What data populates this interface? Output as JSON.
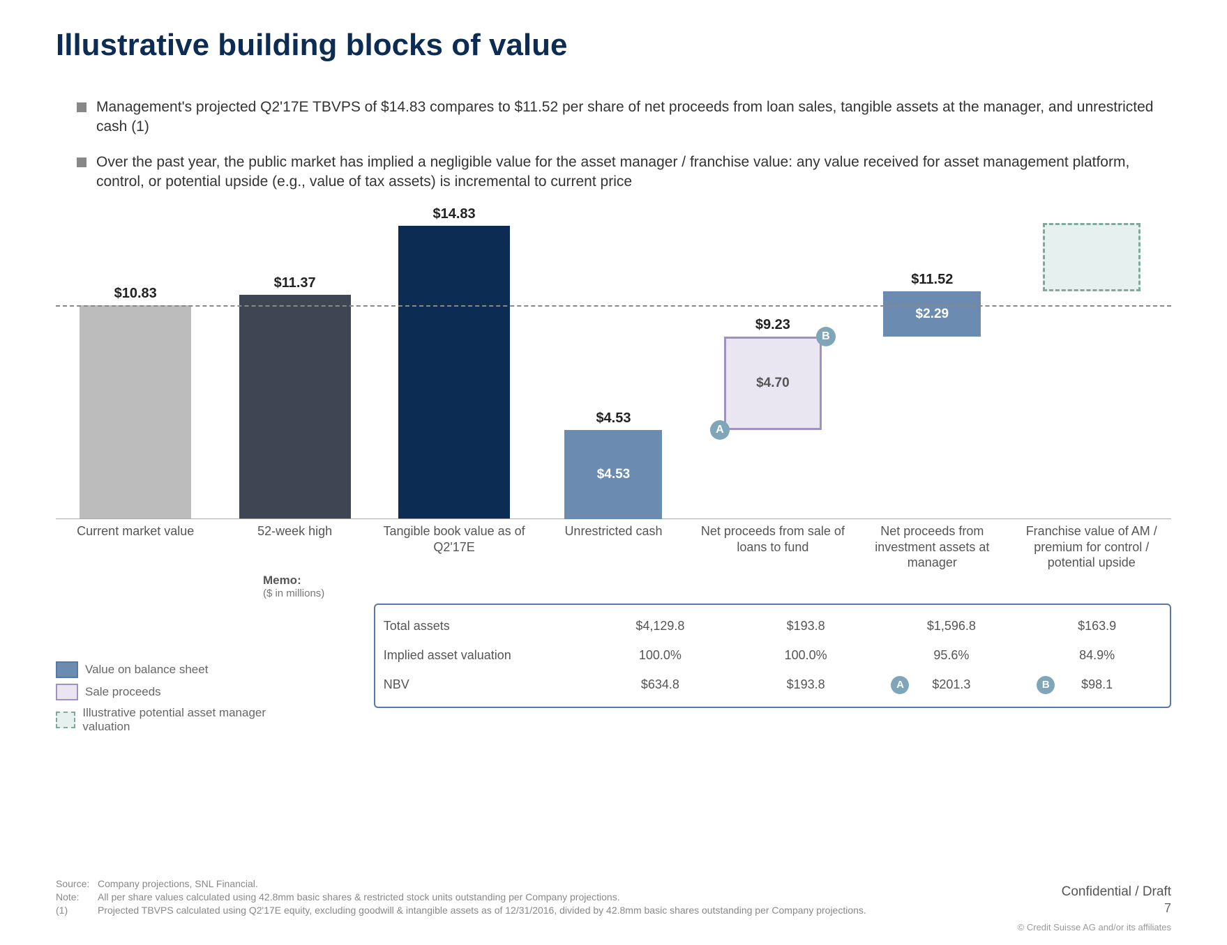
{
  "title": "Illustrative building blocks of value",
  "bullets": [
    "Management's projected Q2'17E TBVPS of $14.83 compares to $11.52 per share of net proceeds from loan sales, tangible assets at the manager, and unrestricted cash (1)",
    "Over the past year, the public market has implied a negligible value for the asset manager / franchise value: any value received for asset management platform, control, or  potential upside (e.g., value of tax assets) is incremental to current price"
  ],
  "chart": {
    "ymax": 15.5,
    "ymin": 0,
    "dashed_ref_value": 10.83,
    "grid_color": "#888888",
    "background_color": "#ffffff",
    "colors": {
      "grey_light": "#bcbcbc",
      "grey_dark": "#3f4552",
      "navy": "#0d2c54",
      "blue_mid": "#6c8bb0",
      "lavender_fill": "#e9e6f2",
      "lavender_border": "#9f92c0",
      "teal_fill": "#e6f0ee",
      "teal_border": "#7fa99a",
      "badge_a": "#7fa6b8",
      "badge_b": "#7fa6b8"
    },
    "series": [
      {
        "label": "Current market value",
        "type": "bar",
        "value": 10.83,
        "value_str": "$10.83",
        "fill": "grey_light"
      },
      {
        "label": "52-week high",
        "type": "bar",
        "value": 11.37,
        "value_str": "$11.37",
        "fill": "grey_dark"
      },
      {
        "label": "Tangible book value as of Q2'17E",
        "type": "bar",
        "value": 14.83,
        "value_str": "$14.83",
        "fill": "navy"
      },
      {
        "label": "Unrestricted cash",
        "type": "float",
        "bottom": 0,
        "top": 4.53,
        "top_str": "$4.53",
        "inside_str": "$4.53",
        "fill": "blue_mid"
      },
      {
        "label": "Net proceeds from sale of loans to fund",
        "type": "float_outline",
        "bottom": 4.53,
        "top": 9.23,
        "top_str": "$9.23",
        "inside_str": "$4.70",
        "fill": "lavender_fill",
        "border": "lavender_border",
        "badge_left": "A",
        "badge_right": "B"
      },
      {
        "label": "Net proceeds from investment assets at manager",
        "type": "float",
        "bottom": 9.23,
        "top": 11.52,
        "top_str": "$11.52",
        "inside_str": "$2.29",
        "fill": "blue_mid"
      },
      {
        "label": "Franchise value of AM / premium for control / potential upside",
        "type": "dashed",
        "bottom": 11.52,
        "top": 15.0,
        "fill": "teal_fill",
        "border": "teal_border"
      }
    ]
  },
  "memo_label": "Memo:",
  "memo_sublabel": "($ in millions)",
  "table": {
    "columns_count": 4,
    "rows": [
      {
        "label": "Total assets",
        "cells": [
          "$4,129.8",
          "$193.8",
          "$1,596.8",
          "$163.9"
        ]
      },
      {
        "label": "Implied asset valuation",
        "cells": [
          "100.0%",
          "100.0%",
          "95.6%",
          "84.9%"
        ]
      },
      {
        "label": "NBV",
        "cells": [
          "$634.8",
          "$193.8",
          "$201.3",
          "$98.1"
        ],
        "badges": {
          "2": "A",
          "3": "B"
        },
        "badge_color": "#7fa6b8"
      }
    ]
  },
  "legend": [
    {
      "label": "Value on balance sheet",
      "fill": "#6c8bb0",
      "border": "#5878a8",
      "dashed": false
    },
    {
      "label": "Sale proceeds",
      "fill": "#e9e6f2",
      "border": "#9f92c0",
      "dashed": false
    },
    {
      "label": "Illustrative potential asset manager valuation",
      "fill": "#e6f0ee",
      "border": "#7fa99a",
      "dashed": true
    }
  ],
  "footnotes": {
    "source_tag": "Source:",
    "source_text": "Company projections, SNL Financial.",
    "note_tag": "Note:",
    "note_text": "All per share values calculated using 42.8mm basic shares & restricted stock units outstanding per Company projections.",
    "fn1_tag": "(1)",
    "fn1_text": "Projected TBVPS calculated using Q2'17E equity, excluding goodwill & intangible assets as of 12/31/2016, divided by 42.8mm basic shares outstanding per Company projections."
  },
  "confidential": "Confidential / Draft",
  "page_number": "7",
  "copyright": "© Credit Suisse AG and/or its affiliates"
}
